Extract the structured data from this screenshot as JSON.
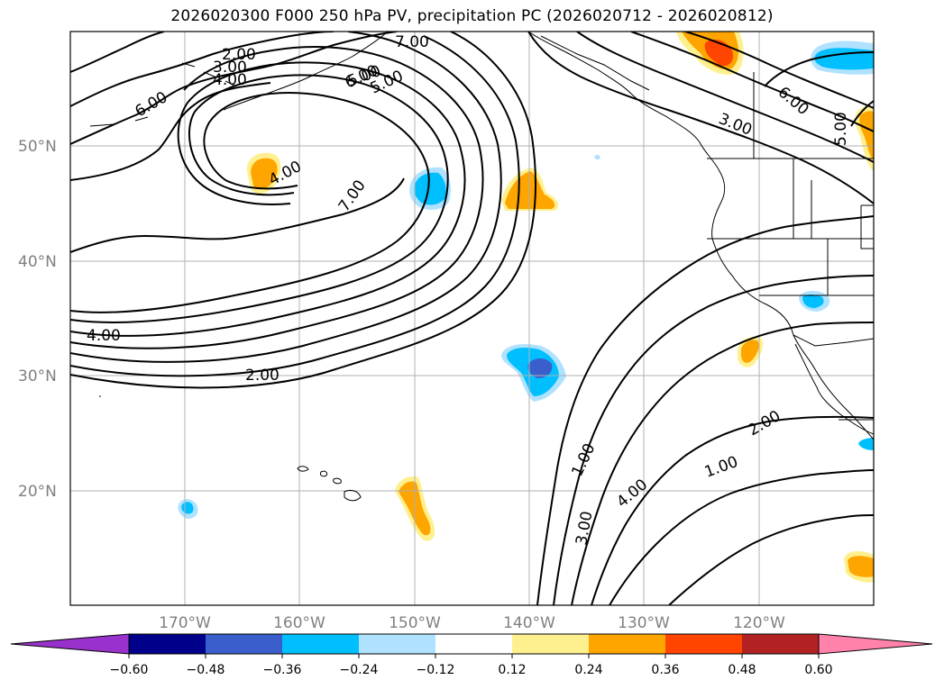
{
  "title": "2026020300 F000 250 hPa PV, precipitation PC (2026020712 - 2026020812)",
  "map": {
    "lat_labels": [
      "50°N",
      "40°N",
      "30°N",
      "20°N"
    ],
    "lon_labels": [
      "170°W",
      "160°W",
      "150°W",
      "140°W",
      "130°W",
      "120°W"
    ],
    "contour_labels": [
      "7.00",
      "2.00",
      "3.00",
      "4.00",
      "6.00",
      "5.00",
      "6.00",
      "5.00",
      "4.00",
      "7.00",
      "4.00",
      "2.00",
      "3.00",
      "6.00",
      "5.00",
      "1.00",
      "3.00",
      "4.00",
      "2.00",
      "1.00"
    ]
  },
  "colorbar": {
    "ticks": [
      "−0.60",
      "−0.48",
      "−0.36",
      "−0.24",
      "−0.12",
      "0.12",
      "0.24",
      "0.36",
      "0.48",
      "0.60"
    ],
    "colors": [
      "#9932cc",
      "#00008b",
      "#3a5fcd",
      "#00bfff",
      "#b0e2ff",
      "#ffffff",
      "#fff08f",
      "#ffa500",
      "#ff4500",
      "#b22222",
      "#ff82ab"
    ]
  },
  "colors": {
    "pos_light": "#fff08f",
    "pos_mid": "#ffa500",
    "pos_strong": "#ff4500",
    "neg_light": "#b0e2ff",
    "neg_mid": "#00bfff",
    "neg_strong": "#3a5fcd"
  }
}
